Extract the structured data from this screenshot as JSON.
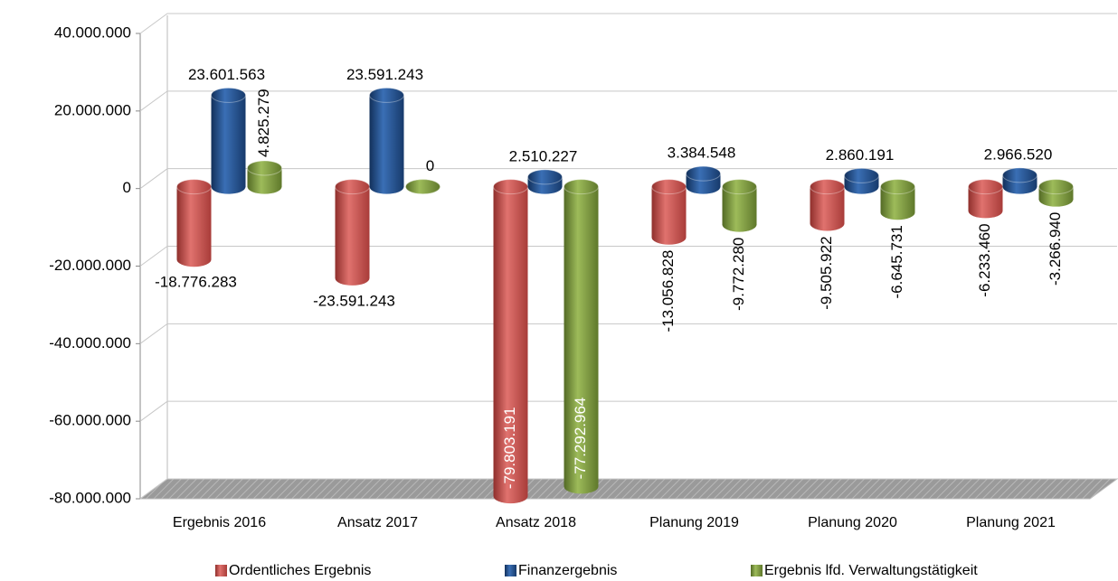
{
  "chart_data": {
    "type": "bar3d",
    "categories": [
      "Ergebnis 2016",
      "Ansatz 2017",
      "Ansatz 2018",
      "Planung 2019",
      "Planung 2020",
      "Planung 2021"
    ],
    "series": [
      {
        "name": "Ordentliches Ergebnis",
        "color": "#c0504d",
        "values": [
          -18776283,
          -23591243,
          -79803191,
          -13056828,
          -9505922,
          -6233460
        ],
        "value_labels": [
          "-18.776.283",
          "-23.591.243",
          "-79.803.191",
          "-13.056.828",
          "-9.505.922",
          "-6.233.460"
        ]
      },
      {
        "name": "Finanzergebnis",
        "color": "#1f4e8c",
        "values": [
          23601563,
          23591243,
          2510227,
          3384548,
          2860191,
          2966520
        ],
        "value_labels": [
          "23.601.563",
          "23.591.243",
          "2.510.227",
          "3.384.548",
          "2.860.191",
          "2.966.520"
        ]
      },
      {
        "name": "Ergebnis lfd. Verwaltungstätigkeit",
        "color": "#77933c",
        "values": [
          4825279,
          0,
          -77292964,
          -9772280,
          -6645731,
          -3266940
        ],
        "value_labels": [
          "4.825.279",
          "0",
          "-77.292.964",
          "-9.772.280",
          "-6.645.731",
          "-3.266.940"
        ]
      }
    ],
    "ylim": [
      -80000000,
      40000000
    ],
    "yticks": [
      {
        "value": -80000000,
        "label": "-80.000.000"
      },
      {
        "value": -60000000,
        "label": "-60.000.000"
      },
      {
        "value": -40000000,
        "label": "-40.000.000"
      },
      {
        "value": -20000000,
        "label": "-20.000.000"
      },
      0,
      {
        "value": 20000000,
        "label": "20.000.000"
      },
      {
        "value": 40000000,
        "label": "40.000.000"
      }
    ],
    "grid": true,
    "legend": "bottom"
  }
}
